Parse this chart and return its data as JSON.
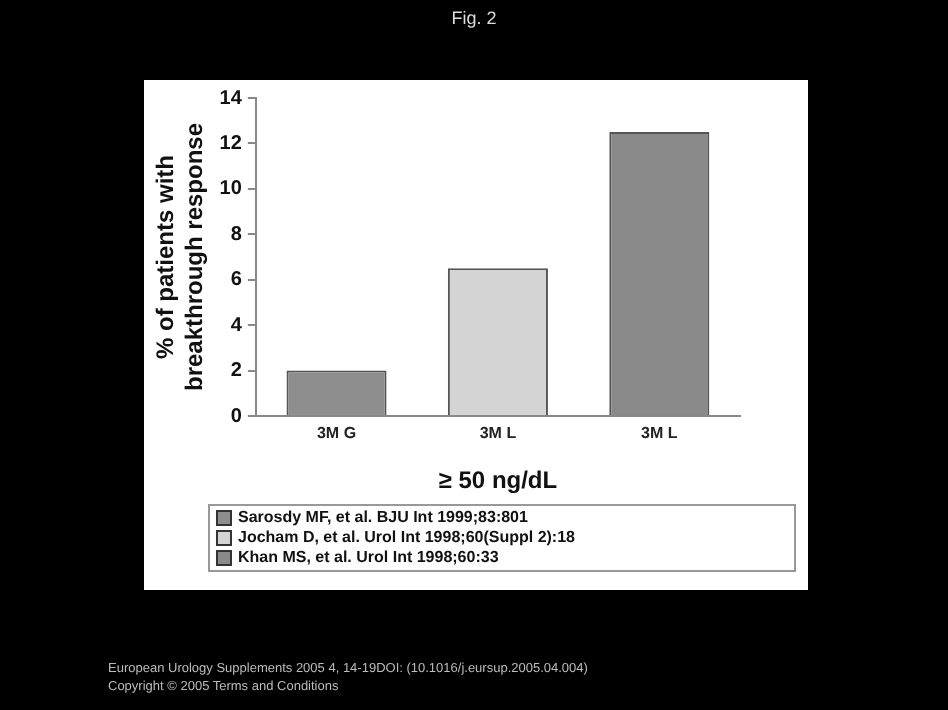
{
  "chart_data": {
    "type": "bar",
    "title": "Fig. 2",
    "ylabel": "% of patients with breakthrough response",
    "xlabel": "≥ 50 ng/dL",
    "categories": [
      "3M G",
      "3M L",
      "3M L"
    ],
    "stacked": true,
    "series": [
      {
        "name": "Sarosdy MF, et al. BJU Int 1999;83:801",
        "color": "#8e8e8e",
        "values": [
          2,
          null,
          null
        ]
      },
      {
        "name": "Jocham D, et al. Urol Int 1998;60(Suppl 2):18",
        "color": "#d4d4d4",
        "values": [
          null,
          6.5,
          null
        ]
      },
      {
        "name": "Khan MS, et al. Urol Int 1998;60:33",
        "color": "#8a8a8a",
        "values": [
          null,
          null,
          12.5
        ]
      }
    ],
    "ylim": [
      0,
      14
    ],
    "yticks": [
      0,
      2,
      4,
      6,
      8,
      10,
      12,
      14
    ],
    "grid": false,
    "legend": "bottom",
    "annotations": [
      "European Urology Supplements 2005 4, 14-19DOI: (10.1016/j.eursup.2005.04.004)",
      "Copyright © 2005 Terms and Conditions"
    ]
  }
}
